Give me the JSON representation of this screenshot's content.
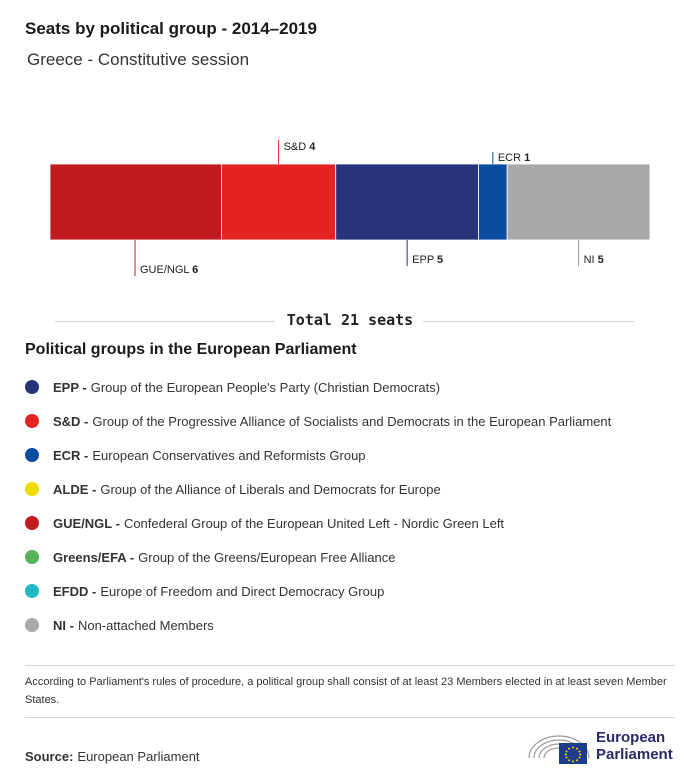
{
  "header": {
    "title": "Seats by political group - 2014–2019",
    "subtitle": "Greece - Constitutive session"
  },
  "chart_data": {
    "type": "bar",
    "orientation": "horizontal-stacked",
    "categories": [
      "GUE/NGL",
      "S&D",
      "EPP",
      "ECR",
      "NI"
    ],
    "values": [
      6,
      4,
      5,
      1,
      5
    ],
    "colors": [
      "#c01b1f",
      "#e42324",
      "#273479",
      "#0a4ca0",
      "#a9a9a9"
    ],
    "label_side": [
      "below",
      "above",
      "below",
      "above",
      "below"
    ],
    "total": 21,
    "legend": "below chart"
  },
  "total_label": "Total 21 seats",
  "legend": {
    "title": "Political groups in the European Parliament",
    "items": [
      {
        "abbr": "EPP -",
        "desc": "Group of the European People's Party (Christian Democrats)",
        "color": "#273479"
      },
      {
        "abbr": "S&D -",
        "desc": "Group of the Progressive Alliance of Socialists and Democrats in the European Parliament",
        "color": "#e42324"
      },
      {
        "abbr": "ECR -",
        "desc": "European Conservatives and Reformists Group",
        "color": "#0a4ca0"
      },
      {
        "abbr": "ALDE -",
        "desc": "Group of the Alliance of Liberals and Democrats for Europe",
        "color": "#f0dc00"
      },
      {
        "abbr": "GUE/NGL -",
        "desc": "Confederal Group of the European United Left - Nordic Green Left",
        "color": "#c01b1f"
      },
      {
        "abbr": "Greens/EFA -",
        "desc": "Group of the Greens/European Free Alliance",
        "color": "#56b25a"
      },
      {
        "abbr": "EFDD -",
        "desc": "Europe of Freedom and Direct Democracy Group",
        "color": "#23b8c4"
      },
      {
        "abbr": "NI -",
        "desc": "Non-attached Members",
        "color": "#a9a9a9"
      }
    ]
  },
  "footnote": "According to Parliament's rules of procedure, a political group shall consist of at least 23 Members elected in at least seven Member States.",
  "source": {
    "label": "Source:",
    "value": "European Parliament"
  },
  "logo": {
    "line1": "European",
    "line2": "Parliament"
  }
}
